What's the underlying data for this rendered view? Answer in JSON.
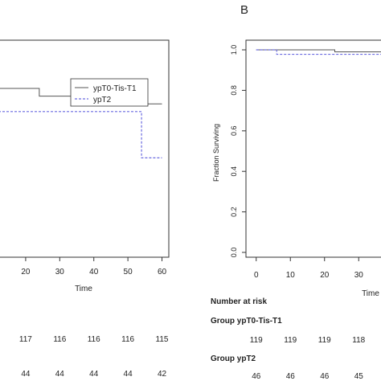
{
  "chart_data": [
    {
      "type": "line",
      "panel": "",
      "xlabel": "Time",
      "ylabel": "",
      "x_ticks": [
        20,
        30,
        40,
        50,
        60
      ],
      "xlim": [
        12,
        62
      ],
      "ylim": [
        0.95,
        1.01
      ],
      "legend": {
        "placement": "top-right",
        "entries": [
          "ypT0-Tis-T1",
          "ypT2"
        ]
      },
      "series": [
        {
          "name": "ypT0-Tis-T1",
          "style": "solid",
          "color": "#555555",
          "step_x": [
            12,
            24,
            50,
            60
          ],
          "step_y": [
            1.0,
            0.998,
            0.996,
            0.996
          ]
        },
        {
          "name": "ypT2",
          "style": "dashed",
          "color": "#6a6ae0",
          "step_x": [
            12,
            54,
            60
          ],
          "step_y": [
            0.994,
            0.982,
            0.982
          ]
        }
      ],
      "risk_table": {
        "rows": [
          {
            "label": "",
            "values": [
              "117",
              "116",
              "116",
              "116",
              "115"
            ]
          },
          {
            "label": "",
            "values": [
              "44",
              "44",
              "44",
              "44",
              "42"
            ]
          }
        ]
      }
    },
    {
      "type": "line",
      "panel": "B",
      "xlabel": "Time",
      "ylabel": "Fraction Surviving",
      "y_ticks": [
        "0.0",
        "0.2",
        "0.4",
        "0.6",
        "0.8",
        "1.0"
      ],
      "x_ticks": [
        0,
        10,
        20,
        30
      ],
      "xlim": [
        -3,
        37
      ],
      "ylim": [
        0.0,
        1.0
      ],
      "series": [
        {
          "name": "ypT0-Tis-T1",
          "style": "solid",
          "color": "#555555",
          "step_x": [
            0,
            23,
            37
          ],
          "step_y": [
            1.0,
            0.99,
            0.99
          ]
        },
        {
          "name": "ypT2",
          "style": "dashed",
          "color": "#6a6ae0",
          "step_x": [
            0,
            6,
            37
          ],
          "step_y": [
            1.0,
            0.978,
            0.978
          ]
        }
      ],
      "risk_table": {
        "title": "Number at risk",
        "rows": [
          {
            "label": "Group ypT0-Tis-T1",
            "values": [
              "119",
              "119",
              "119",
              "118"
            ]
          },
          {
            "label": "Group ypT2",
            "values": [
              "46",
              "46",
              "46",
              "45"
            ]
          }
        ]
      }
    }
  ]
}
